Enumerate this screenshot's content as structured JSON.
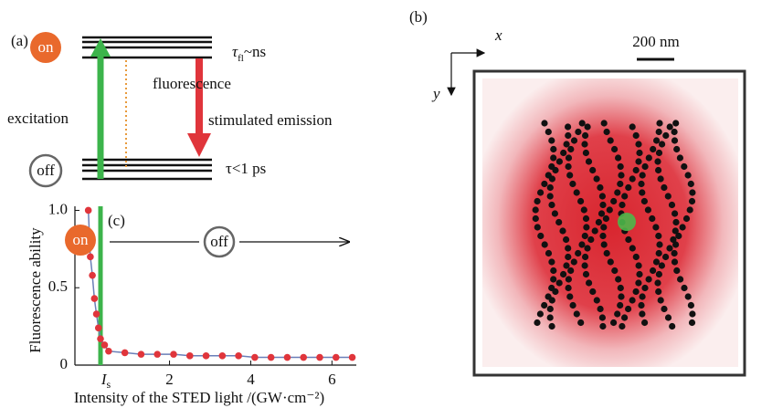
{
  "panel_a": {
    "label": "(a)",
    "on": "on",
    "off": "off",
    "excitation": "excitation",
    "fluorescence": "fluorescence",
    "stimulated": "stimulated emission",
    "tau_top": {
      "symbol": "τ",
      "sub": "fl",
      "rest": "~ns"
    },
    "tau_bottom": "τ<1 ps"
  },
  "panel_b": {
    "label": "(b)",
    "x_axis": "x",
    "y_axis": "y",
    "scale_bar": "200 nm"
  },
  "chart_data": {
    "type": "scatter",
    "panel_label": "(c)",
    "on": "on",
    "off": "off",
    "xlabel": "Intensity of  the STED light /(GW·cm⁻²)",
    "ylabel": "Fluorescence ability",
    "xlim": [
      -0.33,
      6.6
    ],
    "ylim": [
      0,
      1.05
    ],
    "xticks": [
      {
        "value": 0.3,
        "label": "I",
        "subscript": "s"
      },
      2,
      4,
      6
    ],
    "yticks": [
      0,
      {
        "value": 0.5,
        "label": "0.5"
      },
      {
        "value": 1.0,
        "label": "1.0"
      }
    ],
    "threshold_color": "#3cb44b",
    "series": [
      {
        "color": "#e0353b",
        "line_color": "#6a7fb8",
        "x": [
          0,
          0.05,
          0.1,
          0.15,
          0.2,
          0.25,
          0.3,
          0.4,
          0.5,
          0.9,
          1.3,
          1.7,
          2.1,
          2.5,
          2.9,
          3.3,
          3.7,
          4.1,
          4.5,
          4.9,
          5.3,
          5.7,
          6.1,
          6.5
        ],
        "values": [
          1.0,
          0.7,
          0.58,
          0.43,
          0.33,
          0.24,
          0.17,
          0.13,
          0.09,
          0.08,
          0.07,
          0.07,
          0.07,
          0.06,
          0.06,
          0.06,
          0.06,
          0.05,
          0.05,
          0.05,
          0.05,
          0.05,
          0.05,
          0.05
        ]
      }
    ]
  }
}
